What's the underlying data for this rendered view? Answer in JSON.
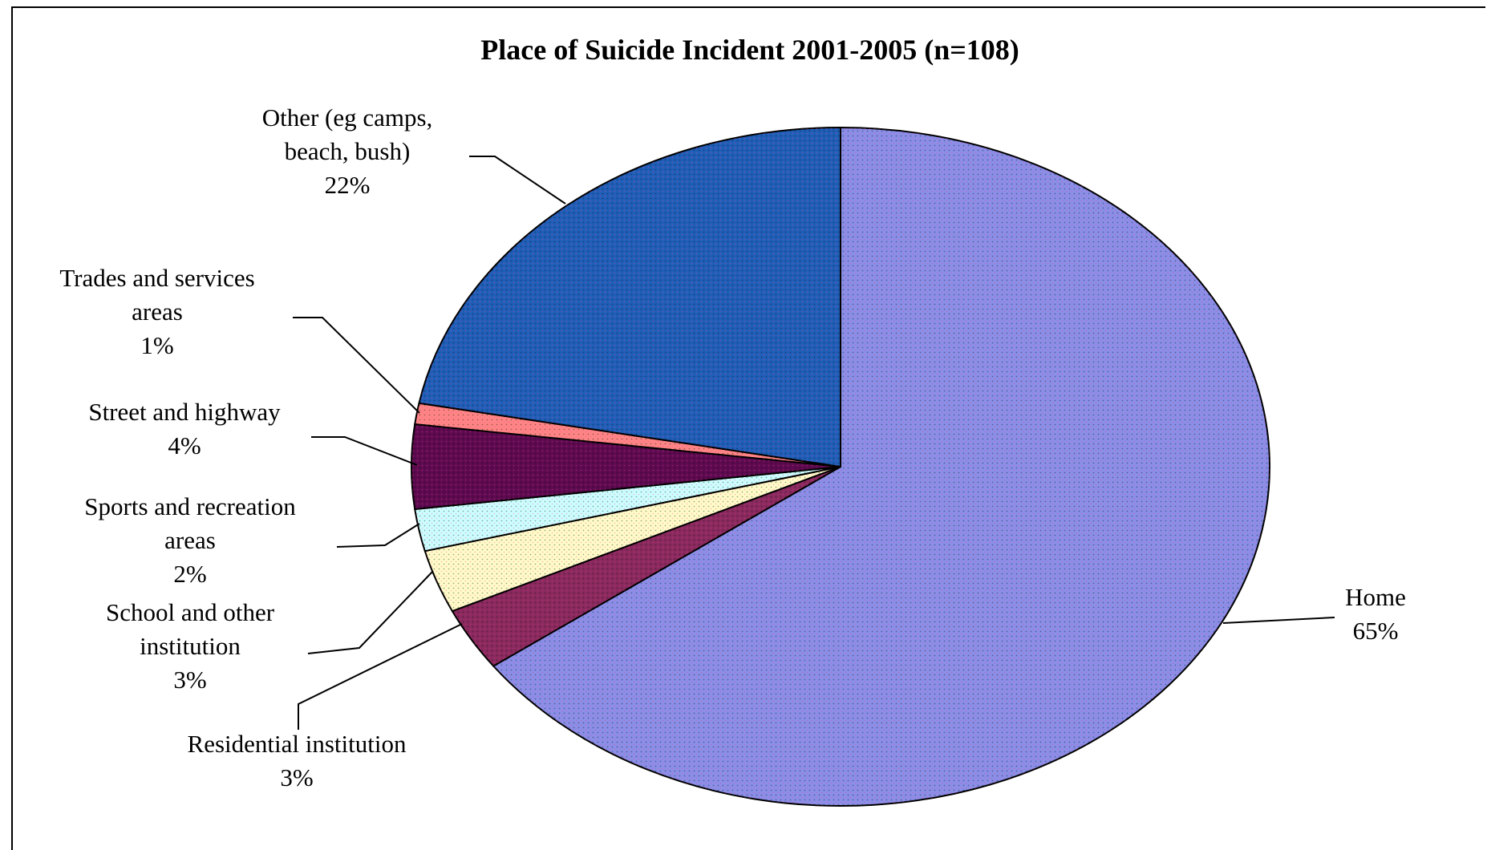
{
  "chart_data": {
    "type": "pie",
    "title": "Place of Suicide Incident 2001-2005 (n=108)",
    "start_angle_deg": 0,
    "direction": "clockwise",
    "slices": [
      {
        "name": "Home",
        "value": 65,
        "label_lines": [
          "Home",
          "65%"
        ],
        "color": "#8a8fe8"
      },
      {
        "name": "Residential institution",
        "value": 3,
        "label_lines": [
          "Residential institution",
          "3%"
        ],
        "color": "#8a2a5e"
      },
      {
        "name": "School and other institution",
        "value": 3,
        "label_lines": [
          "School and other",
          "institution",
          "3%"
        ],
        "color": "#fffcc8"
      },
      {
        "name": "Sports and recreation areas",
        "value": 2,
        "label_lines": [
          "Sports and recreation",
          "areas",
          "2%"
        ],
        "color": "#ccffff"
      },
      {
        "name": "Street and highway",
        "value": 4,
        "label_lines": [
          "Street and highway",
          "4%"
        ],
        "color": "#5e0a50"
      },
      {
        "name": "Trades and services areas",
        "value": 1,
        "label_lines": [
          "Trades and services",
          "areas",
          "1%"
        ],
        "color": "#ff8585"
      },
      {
        "name": "Other (eg camps, beach, bush)",
        "value": 22,
        "label_lines": [
          "Other (eg camps,",
          "beach, bush)",
          "22%"
        ],
        "color": "#1f5fb8"
      }
    ]
  }
}
